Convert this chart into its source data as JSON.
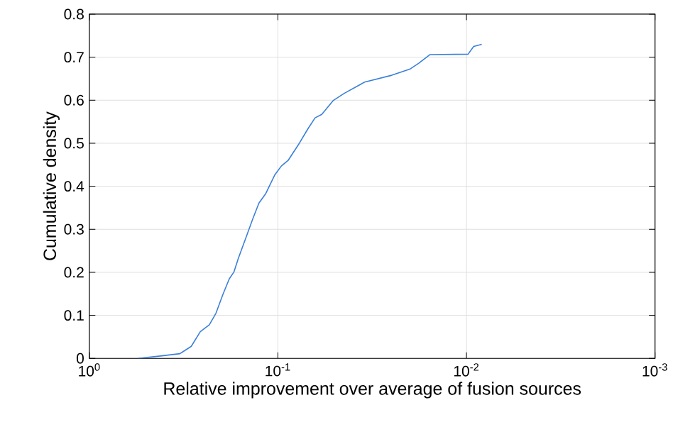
{
  "chart_data": {
    "type": "line",
    "xlabel": "Relative improvement over average of fusion sources",
    "ylabel": "Cumulative density",
    "log": "x",
    "grid": true,
    "marker": "none",
    "line_style": "solid",
    "xlim": [
      1,
      0.001
    ],
    "xticks": [
      {
        "value": 1,
        "label": "10$^{0}$"
      },
      {
        "value": 0.1,
        "label": "10$^{-1}$"
      },
      {
        "value": 0.01,
        "label": "10$^{-2}$"
      },
      {
        "value": 0.001,
        "label": "10$^{-3}$"
      }
    ],
    "ylim": [
      0,
      0.8
    ],
    "yticks": [
      0,
      0.1,
      0.2,
      0.3,
      0.4,
      0.5,
      0.6,
      0.7,
      0.8
    ],
    "series": [
      {
        "color": "#3a7fd9",
        "x": [
          0.55,
          0.412,
          0.331,
          0.288,
          0.258,
          0.231,
          0.213,
          0.196,
          0.181,
          0.171,
          0.162,
          0.149,
          0.136,
          0.126,
          0.116,
          0.104,
          0.0959,
          0.0883,
          0.077,
          0.069,
          0.0635,
          0.0585,
          0.051,
          0.0445,
          0.0347,
          0.0249,
          0.02,
          0.0179,
          0.0156,
          0.0098,
          0.00916,
          0.0083
        ],
        "values": [
          0,
          0.006,
          0.011,
          0.028,
          0.062,
          0.078,
          0.105,
          0.148,
          0.185,
          0.201,
          0.233,
          0.276,
          0.324,
          0.361,
          0.383,
          0.426,
          0.447,
          0.46,
          0.5,
          0.535,
          0.559,
          0.567,
          0.599,
          0.616,
          0.642,
          0.658,
          0.672,
          0.686,
          0.706,
          0.707,
          0.725,
          0.73
        ]
      }
    ]
  }
}
